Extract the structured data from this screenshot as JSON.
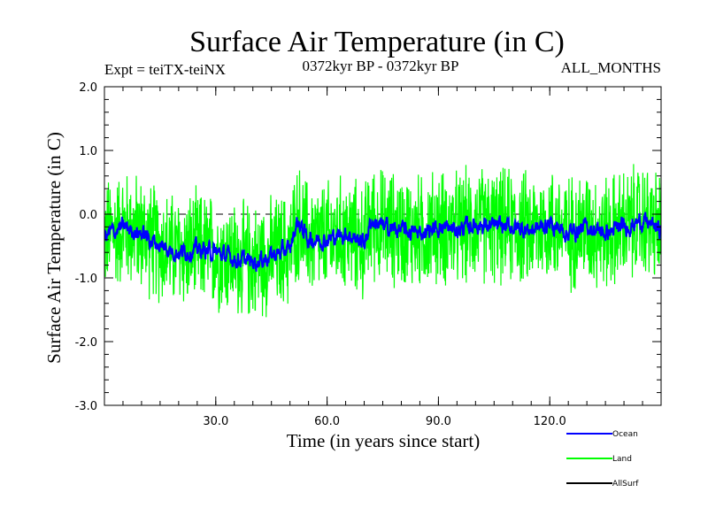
{
  "chart_data": {
    "type": "line",
    "title": "Surface Air Temperature (in C)",
    "subtitle_left": "Expt = teiTX-teiNX",
    "subtitle_center": "0372kyr BP - 0372kyr BP",
    "subtitle_right": "ALL_MONTHS",
    "xlabel": "Time (in years since start)",
    "ylabel": "Surface Air Temperature (in C)",
    "xlim": [
      0,
      150
    ],
    "ylim": [
      -3.0,
      2.0
    ],
    "xticks": [
      30,
      60,
      90,
      120
    ],
    "xtick_labels": [
      "30.0",
      "60.0",
      "90.0",
      "120.0"
    ],
    "yticks": [
      2.0,
      1.0,
      0.0,
      -1.0,
      -2.0,
      -3.0
    ],
    "ytick_labels": [
      "2.0",
      "1.0",
      "0.0",
      "-1.0",
      "-2.0",
      "-3.0"
    ],
    "reference_line": 0.0,
    "series": [
      {
        "name": "Land",
        "color": "#00ff00",
        "x": [
          0,
          5,
          10,
          15,
          20,
          25,
          30,
          35,
          40,
          45,
          50,
          52,
          55,
          60,
          65,
          70,
          72,
          75,
          80,
          85,
          90,
          95,
          100,
          105,
          110,
          115,
          120,
          125,
          130,
          135,
          140,
          145,
          150
        ],
        "values": [
          -0.35,
          -0.2,
          -0.3,
          -0.5,
          -0.6,
          -0.55,
          -0.6,
          -0.7,
          -0.75,
          -0.65,
          -0.55,
          -0.1,
          -0.4,
          -0.4,
          -0.3,
          -0.45,
          -0.1,
          -0.2,
          -0.25,
          -0.3,
          -0.2,
          -0.25,
          -0.15,
          -0.2,
          -0.2,
          -0.25,
          -0.15,
          -0.3,
          -0.2,
          -0.3,
          -0.2,
          -0.1,
          -0.25
        ],
        "spread": 0.75
      },
      {
        "name": "Ocean",
        "color": "#0000ff",
        "x": [
          0,
          5,
          10,
          15,
          20,
          25,
          30,
          35,
          40,
          45,
          50,
          52,
          55,
          60,
          65,
          70,
          72,
          75,
          80,
          85,
          90,
          95,
          100,
          105,
          110,
          115,
          120,
          125,
          130,
          135,
          140,
          145,
          150
        ],
        "values": [
          -0.35,
          -0.2,
          -0.3,
          -0.5,
          -0.6,
          -0.55,
          -0.6,
          -0.7,
          -0.75,
          -0.65,
          -0.55,
          -0.1,
          -0.4,
          -0.4,
          -0.3,
          -0.45,
          -0.1,
          -0.2,
          -0.25,
          -0.3,
          -0.2,
          -0.25,
          -0.15,
          -0.2,
          -0.2,
          -0.25,
          -0.15,
          -0.3,
          -0.2,
          -0.3,
          -0.2,
          -0.1,
          -0.25
        ],
        "spread": 0.15
      },
      {
        "name": "AllSurf",
        "color": "#000000",
        "x": [],
        "values": []
      }
    ],
    "legend": [
      "Ocean",
      "Land",
      "AllSurf"
    ],
    "legend_position": "bottom-right"
  }
}
